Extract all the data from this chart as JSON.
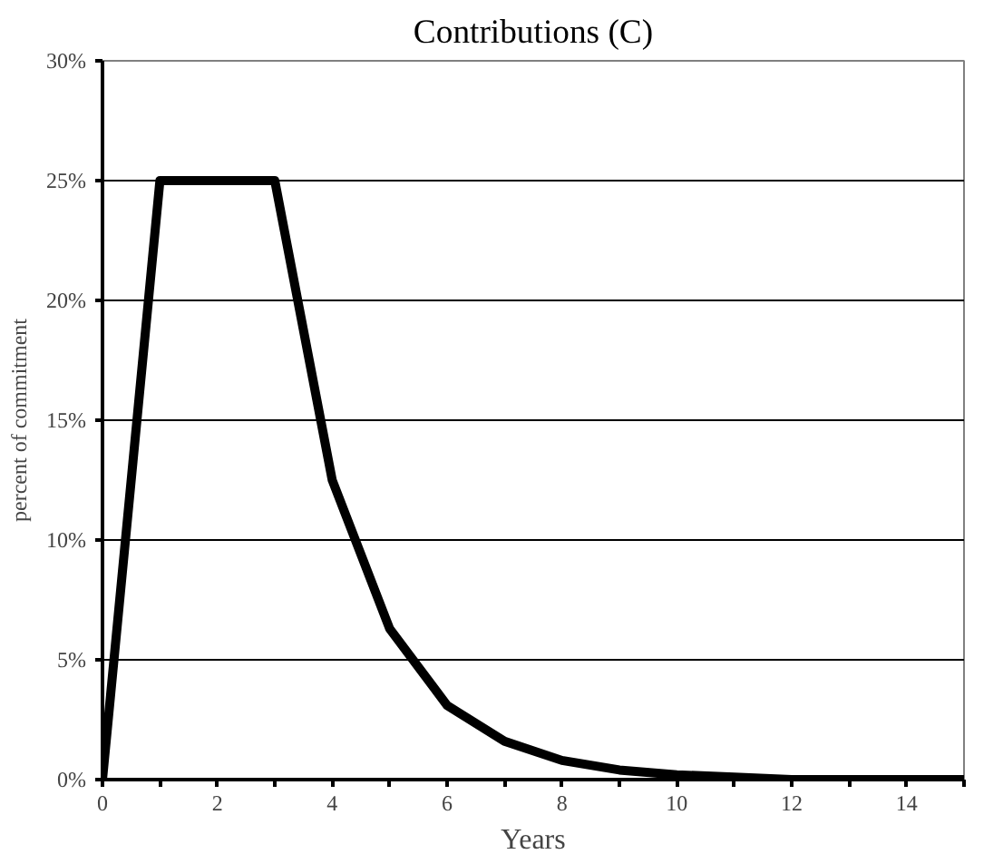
{
  "chart_data": {
    "type": "line",
    "title": "Contributions (C)",
    "xlabel": "Years",
    "ylabel": "percent of commitment",
    "x": [
      0,
      1,
      2,
      3,
      4,
      5,
      6,
      7,
      8,
      9,
      10,
      11,
      12,
      13,
      14,
      15
    ],
    "series": [
      {
        "color": "#000000",
        "values": [
          0,
          25,
          25,
          25,
          12.5,
          6.3,
          3.1,
          1.6,
          0.8,
          0.4,
          0.2,
          0.1,
          0,
          0,
          0,
          0
        ]
      }
    ],
    "xlim": [
      0,
      15
    ],
    "xticks": [
      0,
      {
        "value": 1,
        "label": null
      },
      2,
      {
        "value": 3,
        "label": null
      },
      4,
      {
        "value": 5,
        "label": null
      },
      6,
      {
        "value": 7,
        "label": null
      },
      8,
      {
        "value": 9,
        "label": null
      },
      10,
      {
        "value": 11,
        "label": null
      },
      12,
      {
        "value": 13,
        "label": null
      },
      14,
      {
        "value": 15,
        "label": null
      }
    ],
    "ylim": [
      0,
      30
    ],
    "yticks": [
      {
        "value": 0,
        "label": "0%"
      },
      {
        "value": 5,
        "label": "5%"
      },
      {
        "value": 10,
        "label": "10%"
      },
      {
        "value": 15,
        "label": "15%"
      },
      {
        "value": 20,
        "label": "20%"
      },
      {
        "value": 25,
        "label": "25%"
      },
      {
        "value": 30,
        "label": "30%"
      }
    ],
    "grid": "y",
    "marker": "none",
    "line_style": "solid"
  }
}
